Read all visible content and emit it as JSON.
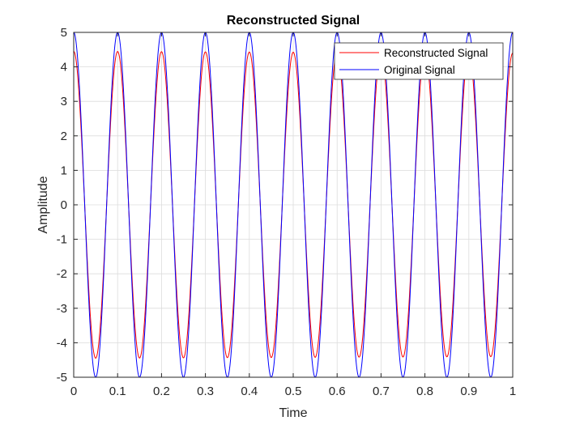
{
  "chart_data": {
    "type": "line",
    "title": "Reconstructed Signal",
    "xlabel": "Time",
    "ylabel": "Amplitude",
    "xlim": [
      0,
      1
    ],
    "ylim": [
      -5,
      5
    ],
    "xticks": [
      "0",
      "0.1",
      "0.2",
      "0.3",
      "0.4",
      "0.5",
      "0.6",
      "0.7",
      "0.8",
      "0.9",
      "1"
    ],
    "yticks": [
      "-5",
      "-4",
      "-3",
      "-2",
      "-1",
      "0",
      "1",
      "2",
      "3",
      "4",
      "5"
    ],
    "grid": true,
    "legend_position": "top-right",
    "series": [
      {
        "name": "Reconstructed Signal",
        "color": "#ff0000",
        "function": "cosine",
        "frequency": 10,
        "amplitude_start": 4.45,
        "amplitude_end": 4.4,
        "x_range": [
          0,
          1
        ],
        "samples": 1000
      },
      {
        "name": "Original Signal",
        "color": "#0000ff",
        "function": "cosine",
        "frequency": 10,
        "amplitude_start": 5,
        "amplitude_end": 5,
        "x_range": [
          0,
          1
        ],
        "samples": 1000
      }
    ]
  }
}
